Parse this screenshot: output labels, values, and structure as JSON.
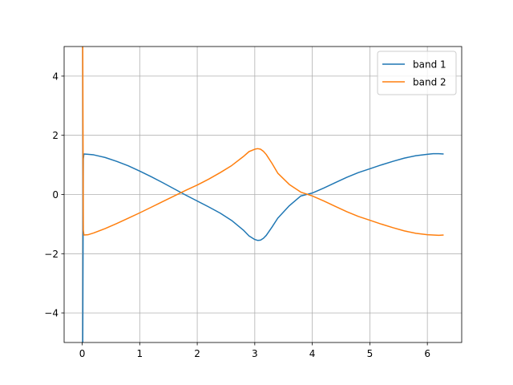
{
  "chart_data": {
    "type": "line",
    "title": "",
    "xlabel": "",
    "ylabel": "",
    "xlim": [
      -0.314,
      6.597
    ],
    "ylim": [
      -5,
      5
    ],
    "xticks": [
      0,
      1,
      2,
      3,
      4,
      5,
      6
    ],
    "yticks": [
      -4,
      -2,
      0,
      2,
      4
    ],
    "xtick_labels": [
      "0",
      "1",
      "2",
      "3",
      "4",
      "5",
      "6"
    ],
    "ytick_labels": [
      "−4",
      "−2",
      "0",
      "2",
      "4"
    ],
    "grid": true,
    "legend": {
      "placement": "upper right"
    },
    "series": [
      {
        "name": "band 1",
        "color": "#1f77b4",
        "x": [
          0.0,
          0.01,
          0.02,
          0.03,
          0.1,
          0.2,
          0.4,
          0.6,
          0.8,
          1.0,
          1.2,
          1.4,
          1.6,
          1.8,
          2.0,
          2.2,
          2.4,
          2.6,
          2.8,
          2.9,
          3.0,
          3.05,
          3.1,
          3.15,
          3.2,
          3.3,
          3.4,
          3.6,
          3.8,
          4.0,
          4.2,
          4.4,
          4.6,
          4.8,
          5.0,
          5.2,
          5.4,
          5.6,
          5.8,
          6.0,
          6.1,
          6.2,
          6.283
        ],
        "y": [
          -5.0,
          -5.0,
          1.2,
          1.37,
          1.36,
          1.34,
          1.25,
          1.12,
          0.97,
          0.79,
          0.6,
          0.4,
          0.19,
          -0.02,
          -0.22,
          -0.42,
          -0.63,
          -0.88,
          -1.2,
          -1.4,
          -1.52,
          -1.55,
          -1.54,
          -1.48,
          -1.38,
          -1.1,
          -0.8,
          -0.38,
          -0.05,
          0.05,
          0.22,
          0.4,
          0.58,
          0.74,
          0.87,
          1.0,
          1.12,
          1.23,
          1.31,
          1.36,
          1.38,
          1.38,
          1.37
        ]
      },
      {
        "name": "band 2",
        "color": "#ff7f0e",
        "x": [
          0.0,
          0.01,
          0.02,
          0.03,
          0.1,
          0.2,
          0.4,
          0.6,
          0.8,
          1.0,
          1.2,
          1.4,
          1.6,
          1.8,
          2.0,
          2.2,
          2.4,
          2.6,
          2.8,
          2.9,
          3.0,
          3.05,
          3.1,
          3.15,
          3.2,
          3.3,
          3.4,
          3.6,
          3.8,
          4.0,
          4.2,
          4.4,
          4.6,
          4.8,
          5.0,
          5.2,
          5.4,
          5.6,
          5.8,
          6.0,
          6.1,
          6.2,
          6.283
        ],
        "y": [
          5.0,
          5.0,
          -1.2,
          -1.37,
          -1.36,
          -1.3,
          -1.15,
          -0.98,
          -0.8,
          -0.62,
          -0.43,
          -0.24,
          -0.05,
          0.14,
          0.32,
          0.52,
          0.74,
          0.98,
          1.28,
          1.45,
          1.53,
          1.55,
          1.53,
          1.46,
          1.35,
          1.05,
          0.72,
          0.34,
          0.08,
          -0.05,
          -0.22,
          -0.4,
          -0.58,
          -0.74,
          -0.87,
          -1.0,
          -1.12,
          -1.23,
          -1.31,
          -1.36,
          -1.37,
          -1.38,
          -1.37
        ]
      }
    ]
  }
}
